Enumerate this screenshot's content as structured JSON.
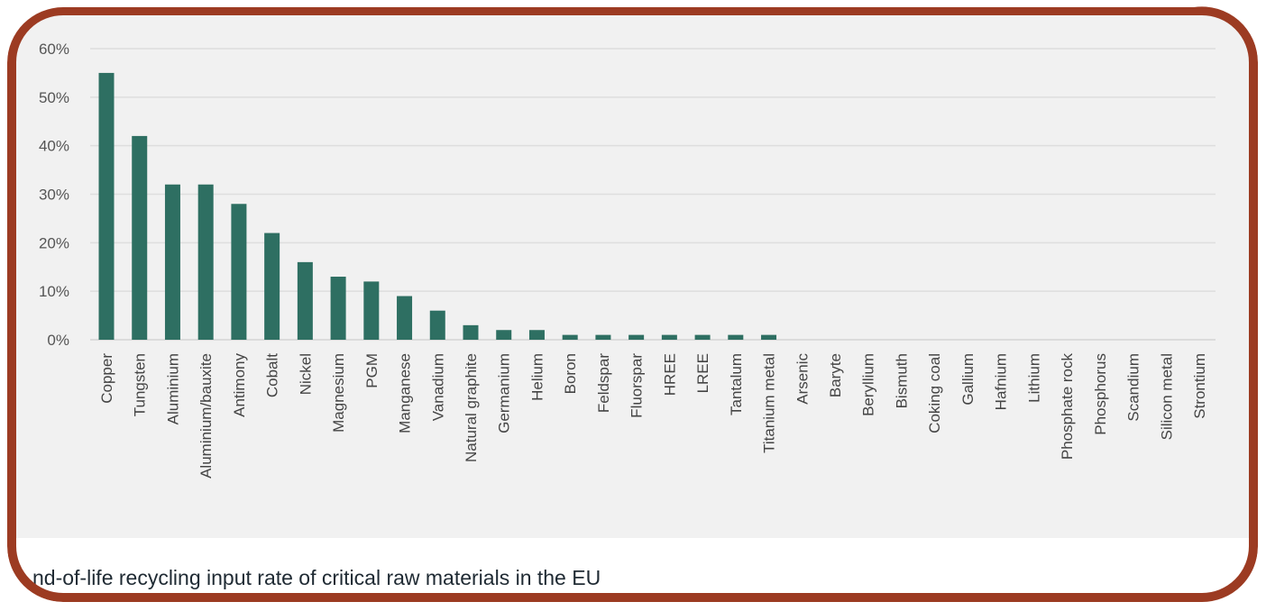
{
  "chart_data": {
    "type": "bar",
    "title": "",
    "xlabel": "",
    "ylabel": "",
    "ylim": [
      0,
      60
    ],
    "yticks": [
      "0%",
      "10%",
      "20%",
      "30%",
      "40%",
      "50%",
      "60%"
    ],
    "grid": true,
    "bar_color": "#2e6f62",
    "categories": [
      "Copper",
      "Tungsten",
      "Aluminium",
      "Aluminium/bauxite",
      "Antimony",
      "Cobalt",
      "Nickel",
      "Magnesium",
      "PGM",
      "Manganese",
      "Vanadium",
      "Natural graphite",
      "Germanium",
      "Helium",
      "Boron",
      "Feldspar",
      "Fluorspar",
      "HREE",
      "LREE",
      "Tantalum",
      "Titanium metal",
      "Arsenic",
      "Baryte",
      "Beryllium",
      "Bismuth",
      "Coking coal",
      "Gallium",
      "Hafnium",
      "Lithium",
      "Phosphate rock",
      "Phosphorus",
      "Scandium",
      "Silicon metal",
      "Strontium"
    ],
    "values": [
      55,
      42,
      32,
      32,
      28,
      22,
      16,
      13,
      12,
      9,
      6,
      3,
      2,
      2,
      1,
      1,
      1,
      1,
      1,
      1,
      1,
      0,
      0,
      0,
      0,
      0,
      0,
      0,
      0,
      0,
      0,
      0,
      0,
      0
    ]
  },
  "caption": "nd-of-life recycling input rate of critical raw materials in the EU",
  "colors": {
    "frame": "#9c3b22",
    "panel": "#f1f1f1"
  }
}
